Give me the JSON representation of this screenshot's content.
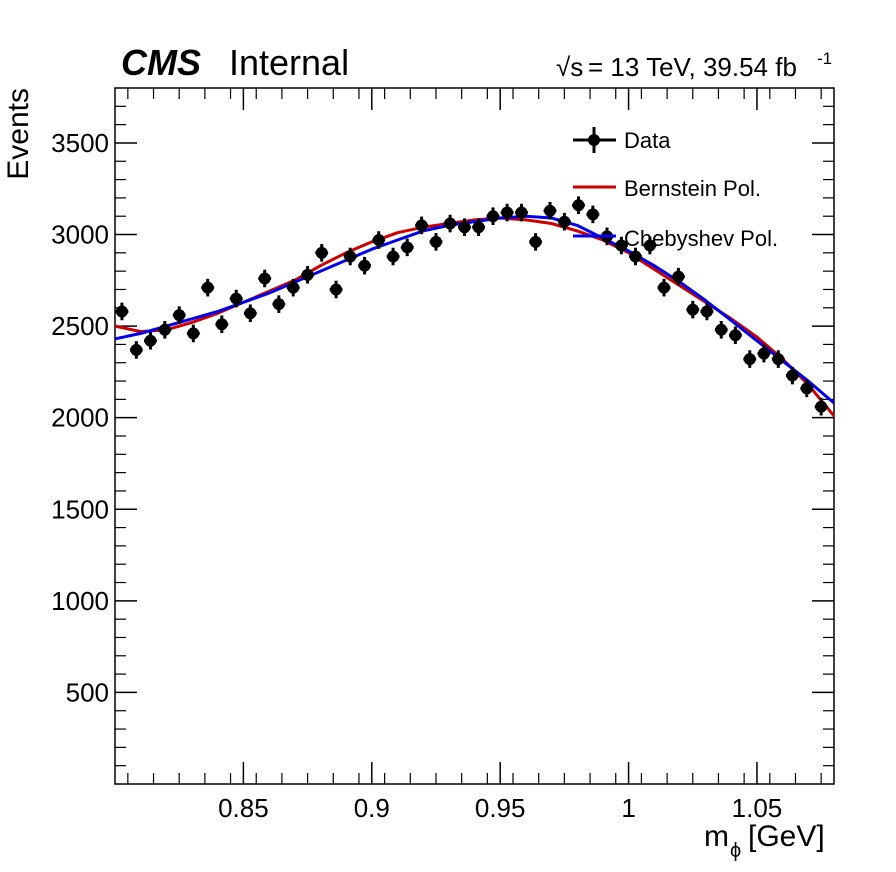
{
  "header": {
    "cms_label": "CMS",
    "status_label": "Internal",
    "energy_lumi_prefix": "= 13 TeV, 39.54 fb",
    "sqrt_s_symbol": "√s",
    "lumi_exponent": "-1"
  },
  "colors": {
    "data": "#000000",
    "bernstein": "#cc0000",
    "chebyshev": "#0000ee"
  },
  "chart_data": {
    "type": "scatter",
    "xlabel_main": "m",
    "xlabel_sub": "ϕ",
    "xlabel_unit": "[GeV]",
    "ylabel": "Events",
    "xlim": [
      0.8,
      1.08
    ],
    "ylim": [
      0,
      3800
    ],
    "x_ticks": [
      0.85,
      0.9,
      0.95,
      1,
      1.05
    ],
    "x_tick_labels": [
      "0.85",
      "0.9",
      "0.95",
      "1",
      "1.05"
    ],
    "y_ticks": [
      500,
      1000,
      1500,
      2000,
      2500,
      3000,
      3500
    ],
    "y_tick_labels": [
      "500",
      "1000",
      "1500",
      "2000",
      "2500",
      "3000",
      "3500"
    ],
    "grid": false,
    "legend_position": "top-right",
    "legend": [
      "Data",
      "Bernstein Pol.",
      "Chebyshev Pol."
    ],
    "data_points": {
      "name": "Data",
      "x": [
        0.8027,
        0.8083,
        0.8138,
        0.8194,
        0.825,
        0.8305,
        0.8361,
        0.8416,
        0.8472,
        0.8527,
        0.8583,
        0.8638,
        0.8694,
        0.875,
        0.8805,
        0.8861,
        0.8916,
        0.8972,
        0.9027,
        0.9083,
        0.9138,
        0.9194,
        0.925,
        0.9305,
        0.9361,
        0.9416,
        0.9472,
        0.9527,
        0.9583,
        0.9638,
        0.9694,
        0.975,
        0.9805,
        0.9861,
        0.9916,
        0.9972,
        1.0027,
        1.0083,
        1.0138,
        1.0194,
        1.025,
        1.0305,
        1.0361,
        1.0416,
        1.0472,
        1.0527,
        1.0583,
        1.0638,
        1.0694,
        1.075
      ],
      "y": [
        2580,
        2370,
        2420,
        2480,
        2560,
        2460,
        2710,
        2510,
        2650,
        2570,
        2760,
        2620,
        2710,
        2780,
        2900,
        2700,
        2880,
        2830,
        2970,
        2880,
        2930,
        3050,
        2960,
        3060,
        3040,
        3040,
        3100,
        3120,
        3120,
        2960,
        3130,
        3070,
        3160,
        3110,
        2990,
        2940,
        2880,
        2940,
        2710,
        2770,
        2590,
        2580,
        2480,
        2450,
        2320,
        2350,
        2320,
        2230,
        2160,
        2060
      ],
      "error": 48
    },
    "series": [
      {
        "name": "Bernstein Pol.",
        "x": [
          0.8,
          0.81,
          0.82,
          0.83,
          0.84,
          0.85,
          0.86,
          0.87,
          0.88,
          0.89,
          0.9,
          0.91,
          0.92,
          0.93,
          0.94,
          0.95,
          0.96,
          0.97,
          0.98,
          0.99,
          1.0,
          1.01,
          1.02,
          1.03,
          1.04,
          1.05,
          1.06,
          1.07,
          1.08
        ],
        "y": [
          2500,
          2470,
          2480,
          2520,
          2570,
          2630,
          2690,
          2750,
          2830,
          2900,
          2960,
          3010,
          3040,
          3060,
          3080,
          3090,
          3080,
          3060,
          3020,
          2970,
          2900,
          2810,
          2720,
          2630,
          2540,
          2440,
          2320,
          2180,
          2010
        ]
      },
      {
        "name": "Chebyshev Pol.",
        "x": [
          0.8,
          0.81,
          0.82,
          0.83,
          0.84,
          0.85,
          0.86,
          0.87,
          0.88,
          0.89,
          0.9,
          0.91,
          0.92,
          0.93,
          0.94,
          0.95,
          0.96,
          0.97,
          0.98,
          0.99,
          1.0,
          1.01,
          1.02,
          1.03,
          1.04,
          1.05,
          1.06,
          1.07,
          1.08
        ],
        "y": [
          2430,
          2460,
          2500,
          2540,
          2580,
          2630,
          2680,
          2740,
          2800,
          2860,
          2920,
          2970,
          3020,
          3050,
          3070,
          3090,
          3100,
          3090,
          3050,
          2980,
          2910,
          2830,
          2740,
          2640,
          2530,
          2420,
          2310,
          2200,
          2080
        ]
      }
    ]
  }
}
